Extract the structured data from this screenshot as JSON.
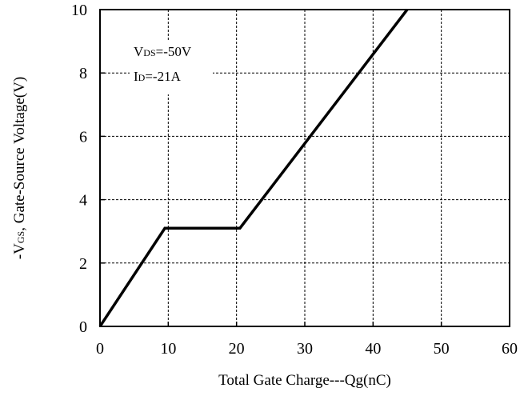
{
  "chart_data": {
    "type": "line",
    "xlabel": "Total Gate Charge---Qg(nC)",
    "ylabel_parts": [
      "-V",
      "GS",
      ", Gate-Source Voltage(V)"
    ],
    "xlim": [
      0,
      60
    ],
    "ylim": [
      0,
      10
    ],
    "x_ticks": [
      0,
      10,
      20,
      30,
      40,
      50,
      60
    ],
    "y_ticks": [
      0,
      2,
      4,
      6,
      8,
      10
    ],
    "grid": true,
    "grid_style": "dashed",
    "series": [
      {
        "x": [
          0,
          9.5,
          20.5,
          45
        ],
        "y": [
          0,
          3.1,
          3.1,
          10
        ],
        "color": "#000000"
      }
    ],
    "annotations": [
      {
        "main": "V",
        "sub": "DS",
        "rest": "=-50V"
      },
      {
        "main": "I",
        "sub": "D",
        "rest": "=-21A"
      }
    ]
  }
}
